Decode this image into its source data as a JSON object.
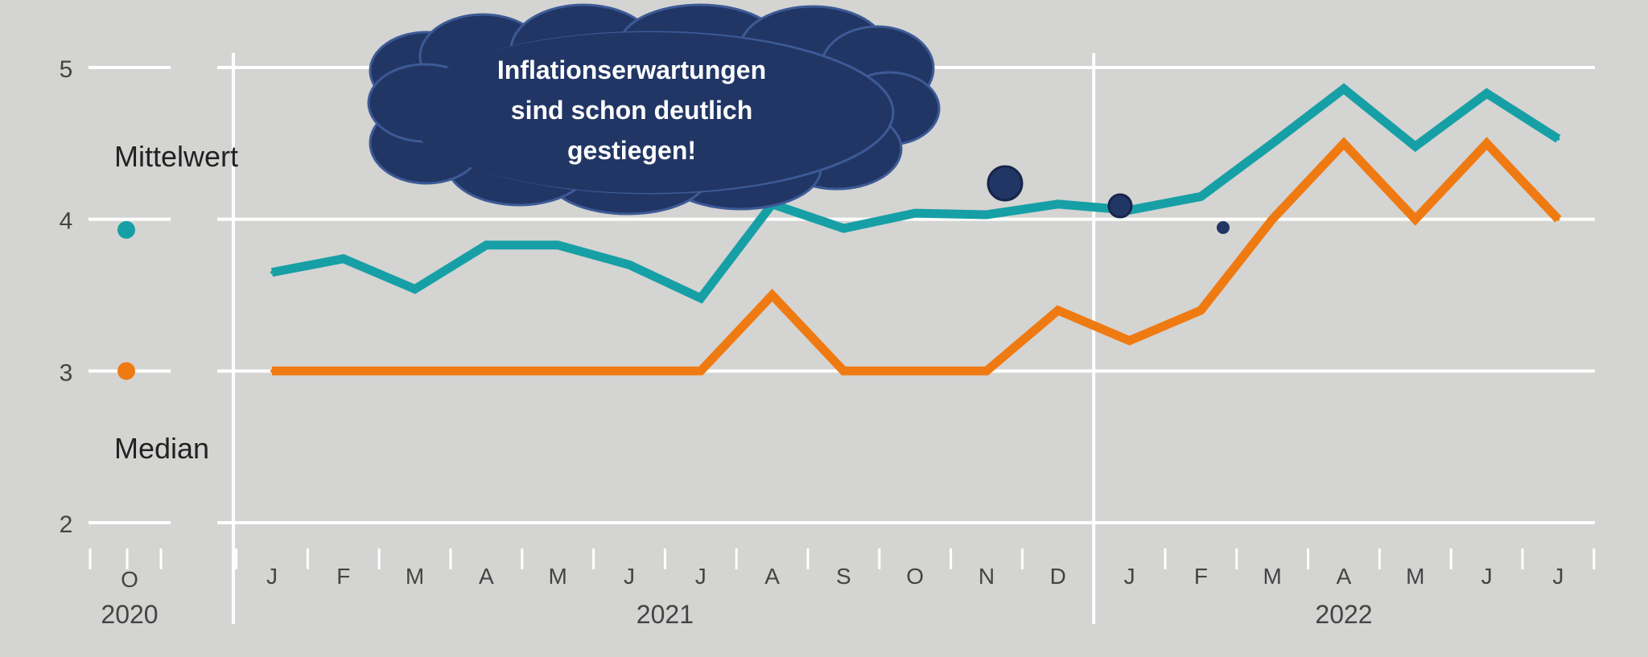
{
  "chart_data": {
    "type": "line",
    "ylim": [
      2,
      5
    ],
    "y_ticks": [
      "2",
      "3",
      "4",
      "5"
    ],
    "grid": true,
    "colors": {
      "background": "#d4d4d2",
      "grid": "#ffffff",
      "mittelwert": "#16a0a6",
      "median": "#f07a12",
      "bubble": "#213665"
    },
    "legend": {
      "placement": "left",
      "items": [
        {
          "name": "Mittelwert",
          "color": "#16a0a6",
          "value": 3.93
        },
        {
          "name": "Median",
          "color": "#f07a12",
          "value": 3.0
        }
      ]
    },
    "legend_period": {
      "month": "O",
      "year": "2020"
    },
    "categories": [
      "J",
      "F",
      "M",
      "A",
      "M",
      "J",
      "J",
      "A",
      "S",
      "O",
      "N",
      "D",
      "J",
      "F",
      "M",
      "A",
      "M",
      "J",
      "J"
    ],
    "years": [
      {
        "label": "2021",
        "from": 0,
        "to": 11
      },
      {
        "label": "2022",
        "from": 12,
        "to": 18
      }
    ],
    "series": [
      {
        "name": "Mittelwert",
        "color": "#16a0a6",
        "values": [
          3.65,
          3.74,
          3.54,
          3.83,
          3.83,
          3.7,
          3.48,
          4.1,
          3.94,
          4.04,
          4.03,
          4.1,
          4.06,
          4.15,
          4.5,
          4.86,
          4.48,
          4.83,
          4.53
        ]
      },
      {
        "name": "Median",
        "color": "#f07a12",
        "values": [
          3.0,
          3.0,
          3.0,
          3.0,
          3.0,
          3.0,
          3.0,
          3.5,
          3.0,
          3.0,
          3.0,
          3.4,
          3.2,
          3.4,
          4.0,
          4.5,
          4.0,
          4.5,
          4.0
        ]
      }
    ],
    "annotation": {
      "text_lines": [
        "Inflationserwartungen",
        "sind schon deutlich",
        "gestiegen!"
      ]
    }
  }
}
